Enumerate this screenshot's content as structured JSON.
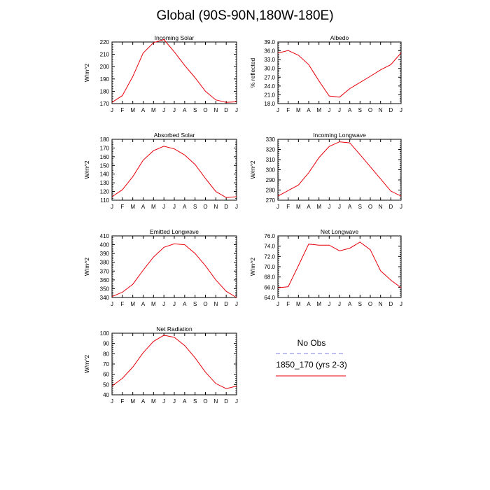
{
  "title": "Global (90S-90N,180W-180E)",
  "chart_data": [
    {
      "type": "line",
      "title": "Incoming Solar",
      "ylabel": "W/m^2",
      "xlabel": "",
      "categories": [
        "J",
        "F",
        "M",
        "A",
        "M",
        "J",
        "J",
        "A",
        "S",
        "O",
        "N",
        "D",
        "J"
      ],
      "ylim": [
        170,
        220
      ],
      "yticks": [
        "170",
        "180",
        "190",
        "200",
        "210",
        "220"
      ],
      "series": [
        {
          "name": "1850_170 (yrs 2-3)",
          "color": "#e8000b",
          "values": [
            171,
            176.5,
            192,
            211,
            219.5,
            222,
            212,
            201,
            191,
            180,
            173,
            171,
            171.5
          ]
        }
      ]
    },
    {
      "type": "line",
      "title": "Albedo",
      "ylabel": "% reflected",
      "xlabel": "",
      "categories": [
        "J",
        "F",
        "M",
        "A",
        "M",
        "J",
        "J",
        "A",
        "S",
        "O",
        "N",
        "D",
        "J"
      ],
      "ylim": [
        18,
        39
      ],
      "yticks": [
        "18.0",
        "21.0",
        "24.0",
        "27.0",
        "30.0",
        "33.0",
        "36.0",
        "39.0"
      ],
      "series": [
        {
          "name": "1850_170 (yrs 2-3)",
          "color": "#e8000b",
          "values": [
            35.2,
            36.1,
            34.5,
            31.3,
            25.7,
            20.6,
            20.2,
            23.1,
            25.2,
            27.3,
            29.5,
            31.3,
            35.3
          ]
        }
      ]
    },
    {
      "type": "line",
      "title": "Absorbed Solar",
      "ylabel": "W/m^2",
      "xlabel": "",
      "categories": [
        "J",
        "F",
        "M",
        "A",
        "M",
        "J",
        "J",
        "A",
        "S",
        "O",
        "N",
        "D",
        "J"
      ],
      "ylim": [
        110,
        180
      ],
      "yticks": [
        "110",
        "120",
        "130",
        "140",
        "150",
        "160",
        "170",
        "180"
      ],
      "series": [
        {
          "name": "1850_170 (yrs 2-3)",
          "color": "#e8000b",
          "values": [
            114,
            122,
            137,
            156,
            167,
            172,
            169,
            162,
            151,
            135,
            120,
            113,
            114
          ]
        }
      ]
    },
    {
      "type": "line",
      "title": "Incoming Longwave",
      "ylabel": "W/m^2",
      "xlabel": "",
      "categories": [
        "J",
        "F",
        "M",
        "A",
        "M",
        "J",
        "J",
        "A",
        "S",
        "O",
        "N",
        "D",
        "J"
      ],
      "ylim": [
        270,
        330
      ],
      "yticks": [
        "270",
        "280",
        "290",
        "300",
        "310",
        "320",
        "330"
      ],
      "series": [
        {
          "name": "1850_170 (yrs 2-3)",
          "color": "#e8000b",
          "values": [
            274,
            279.5,
            285,
            297,
            312,
            323,
            327.5,
            326.5,
            315,
            303,
            291,
            279,
            274
          ]
        }
      ]
    },
    {
      "type": "line",
      "title": "Emitted Longwave",
      "ylabel": "W/m^2",
      "xlabel": "",
      "categories": [
        "J",
        "F",
        "M",
        "A",
        "M",
        "J",
        "J",
        "A",
        "S",
        "O",
        "N",
        "D",
        "J"
      ],
      "ylim": [
        340,
        410
      ],
      "yticks": [
        "340",
        "350",
        "360",
        "370",
        "380",
        "390",
        "400",
        "410"
      ],
      "series": [
        {
          "name": "1850_170 (yrs 2-3)",
          "color": "#e8000b",
          "values": [
            341,
            346,
            355,
            371,
            386,
            397,
            401,
            400,
            390,
            376,
            360,
            347,
            340
          ]
        }
      ]
    },
    {
      "type": "line",
      "title": "Net Longwave",
      "ylabel": "W/m^2",
      "xlabel": "",
      "categories": [
        "J",
        "F",
        "M",
        "A",
        "M",
        "J",
        "J",
        "A",
        "S",
        "O",
        "N",
        "D",
        "J"
      ],
      "ylim": [
        64,
        76
      ],
      "yticks": [
        "64.0",
        "66.0",
        "68.0",
        "70.0",
        "72.0",
        "74.0",
        "76.0"
      ],
      "series": [
        {
          "name": "1850_170 (yrs 2-3)",
          "color": "#e8000b",
          "values": [
            65.9,
            66.1,
            70.2,
            74.4,
            74.2,
            74.2,
            73.1,
            73.6,
            74.8,
            73.3,
            69.2,
            67.4,
            65.9
          ]
        }
      ]
    },
    {
      "type": "line",
      "title": "Net Radiation",
      "ylabel": "W/m^2",
      "xlabel": "",
      "categories": [
        "J",
        "F",
        "M",
        "A",
        "M",
        "J",
        "J",
        "A",
        "S",
        "O",
        "N",
        "D",
        "J"
      ],
      "ylim": [
        40,
        100
      ],
      "yticks": [
        "40",
        "50",
        "60",
        "70",
        "80",
        "90",
        "100"
      ],
      "series": [
        {
          "name": "1850_170 (yrs 2-3)",
          "color": "#e8000b",
          "values": [
            48.5,
            56,
            67,
            81,
            92,
            98,
            96,
            88,
            76,
            62,
            51,
            46,
            48.5
          ]
        }
      ]
    }
  ],
  "legend": {
    "obs_label": "No Obs",
    "model_label": "1850_170 (yrs 2-3)",
    "obs_color": "#7f7fe0",
    "model_color": "#e8000b"
  }
}
